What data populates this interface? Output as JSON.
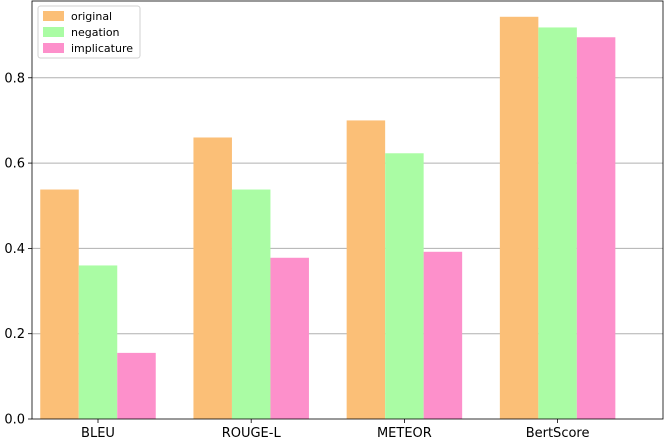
{
  "chart_data": {
    "type": "bar",
    "categories": [
      "BLEU",
      "ROUGE-L",
      "METEOR",
      "BertScore"
    ],
    "series": [
      {
        "name": "original",
        "color": "#fbbf77",
        "values": [
          0.538,
          0.66,
          0.7,
          0.943
        ]
      },
      {
        "name": "negation",
        "color": "#aafca4",
        "values": [
          0.36,
          0.538,
          0.623,
          0.918
        ]
      },
      {
        "name": "implicature",
        "color": "#fd90cb",
        "values": [
          0.155,
          0.378,
          0.392,
          0.895
        ]
      }
    ],
    "ylim": [
      0,
      0.98
    ],
    "yticks": [
      "0.0",
      "0.2",
      "0.4",
      "0.6",
      "0.8"
    ],
    "grid": "horizontal",
    "legend_position": "top-left"
  }
}
